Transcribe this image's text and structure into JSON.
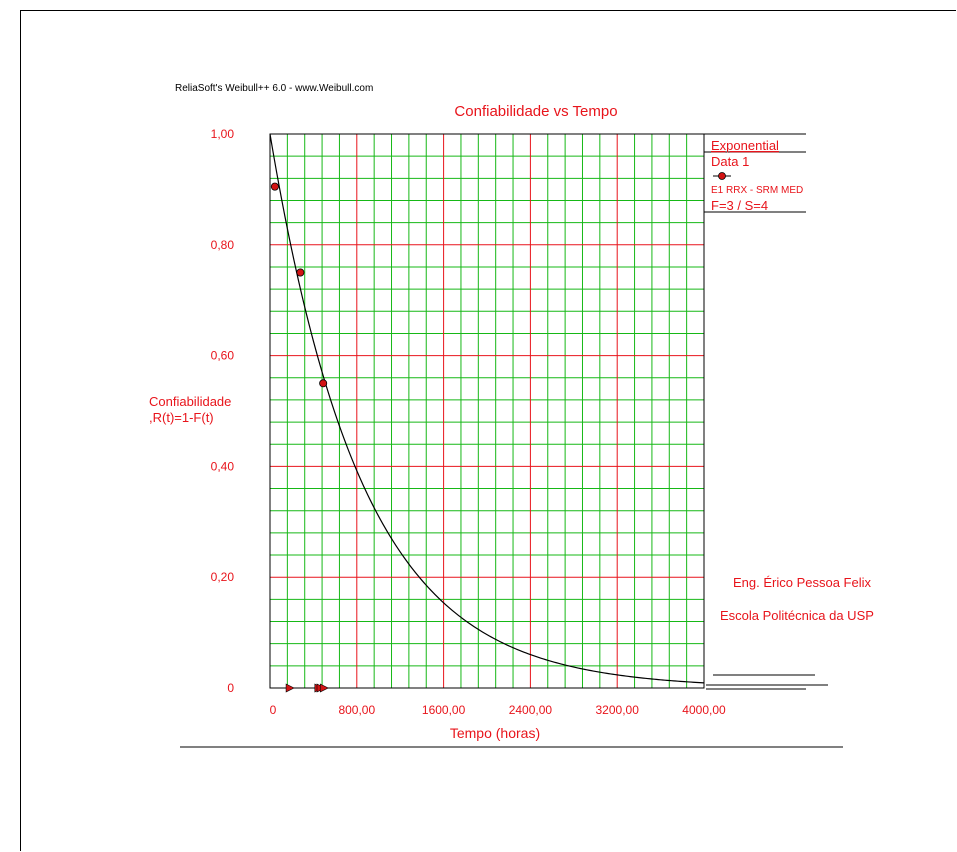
{
  "header": {
    "source_note": "ReliaSoft's Weibull++ 6.0 - www.Weibull.com"
  },
  "footer": {
    "author": "Eng. Érico Pessoa Felix",
    "school": "Escola Politécnica da USP"
  },
  "colors": {
    "accent": "#e8141b",
    "grid_minor": "#16b816",
    "grid_major": "#e8141b",
    "curve": "#000000",
    "point_fill": "#d21414"
  },
  "legend": {
    "model": "Exponential",
    "dataset": "Data 1",
    "description": "E1 RRX - SRM MED",
    "counts": "F=3 / S=4"
  },
  "chart_data": {
    "type": "line",
    "title": "Confiabilidade vs Tempo",
    "xlabel": "Tempo (horas)",
    "ylabel": "Confiabilidade\n,R(t)=1-F(t)",
    "xlim": [
      0,
      4000
    ],
    "ylim": [
      0,
      1
    ],
    "x_ticks": [
      "0",
      "800,00",
      "1600,00",
      "2400,00",
      "3200,00",
      "4000,00"
    ],
    "y_ticks": [
      "0",
      "0,20",
      "0,40",
      "0,60",
      "0,80",
      "1,00"
    ],
    "grid": true,
    "legend_position": "right-top",
    "series": [
      {
        "name": "Data 1",
        "curve": "exponential",
        "rate": 0.00117,
        "failures": [
          {
            "x": 45,
            "y": 0.905
          },
          {
            "x": 280,
            "y": 0.75
          },
          {
            "x": 490,
            "y": 0.55
          }
        ],
        "suspensions_x": [
          185,
          450,
          470,
          500
        ]
      }
    ]
  }
}
